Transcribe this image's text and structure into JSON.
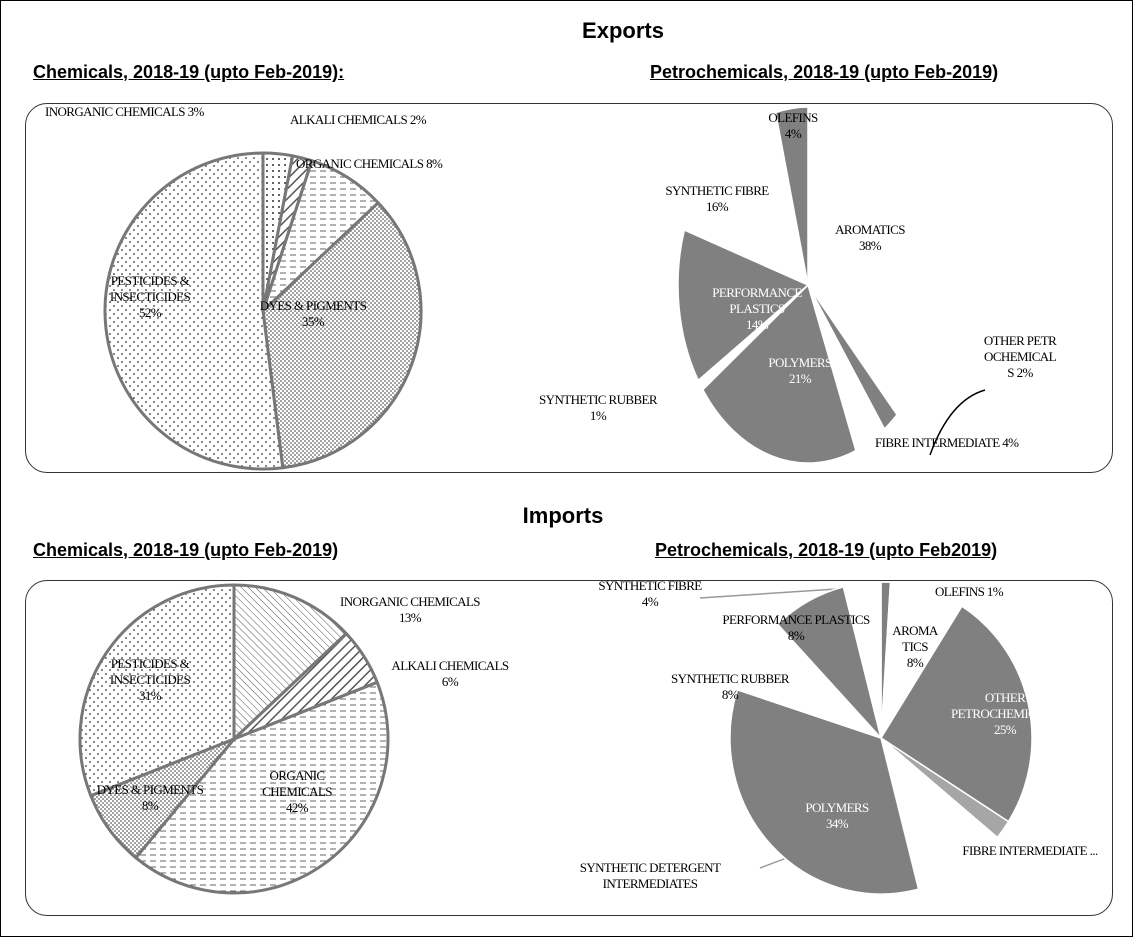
{
  "headings": [
    "Exports",
    "Imports"
  ],
  "chart_data": [
    {
      "type": "pie",
      "title": "Chemicals, 2018-19 (upto Feb-2019):",
      "categories": [
        "INORGANIC CHEMICALS",
        "ALKALI CHEMICALS",
        "ORGANIC CHEMICALS",
        "DYES & PIGMENTS",
        "PESTICIDES & INSECTICIDES"
      ],
      "values": [
        3,
        2,
        8,
        35,
        52
      ],
      "value_labels": [
        "3%",
        "2%",
        "8%",
        "35%",
        "52%"
      ],
      "patterns": [
        "sparse-dots",
        "diagonal-hatch",
        "dashes",
        "dense-dots",
        "dots"
      ]
    },
    {
      "type": "pie",
      "title": "Petrochemicals, 2018-19 (upto Feb-2019)",
      "categories": [
        "AROMATICS",
        "OTHER PETROCHEMICALS",
        "FIBRE INTERMEDIATE",
        "POLYMERS",
        "SYNTHETIC RUBBER",
        "PERFORMANCE PLASTICS",
        "SYNTHETIC FIBRE",
        "OLEFINS"
      ],
      "values": [
        38,
        2,
        4,
        21,
        1,
        14,
        16,
        4
      ],
      "value_labels": [
        "38%",
        "2%",
        "4%",
        "21%",
        "1%",
        "14%",
        "16%",
        "4%"
      ],
      "colors": [
        "#ffffff",
        "#808080",
        "#ffffff",
        "#808080",
        "#ffffff",
        "#808080",
        "#ffffff",
        "#808080"
      ]
    },
    {
      "type": "pie",
      "title": "Chemicals, 2018-19 (upto Feb-2019)",
      "categories": [
        "INORGANIC CHEMICALS",
        "ALKALI CHEMICALS",
        "ORGANIC CHEMICALS",
        "DYES & PIGMENTS",
        "PESTICIDES & INSECTICIDES"
      ],
      "values": [
        13,
        6,
        42,
        8,
        31
      ],
      "value_labels": [
        "13%",
        "6%",
        "42%",
        "8%",
        "31%"
      ],
      "patterns": [
        "back-hatch",
        "diagonal-hatch",
        "dashes",
        "dense-dots",
        "dots"
      ]
    },
    {
      "type": "pie",
      "title": "Petrochemicals, 2018-19 (upto Feb2019)",
      "categories": [
        "OLEFINS",
        "AROMATICS",
        "OTHER PETROCHEMICALS",
        "SYNTHETIC DETERGENT INTERMEDIATES",
        "FIBRE INTERMEDIATE ...",
        "POLYMERS",
        "SYNTHETIC RUBBER",
        "PERFORMANCE PLASTICS",
        "SYNTHETIC FIBRE"
      ],
      "values": [
        1,
        8,
        25,
        2,
        10,
        34,
        8,
        8,
        4
      ],
      "value_labels": [
        "1%",
        "8%",
        "25%",
        null,
        null,
        "34%",
        "8%",
        "8%",
        "4%"
      ],
      "colors": [
        "#808080",
        "#ffffff",
        "#808080",
        "#a6a6a6",
        "#ffffff",
        "#808080",
        "#ffffff",
        "#808080",
        "#ffffff"
      ]
    }
  ]
}
